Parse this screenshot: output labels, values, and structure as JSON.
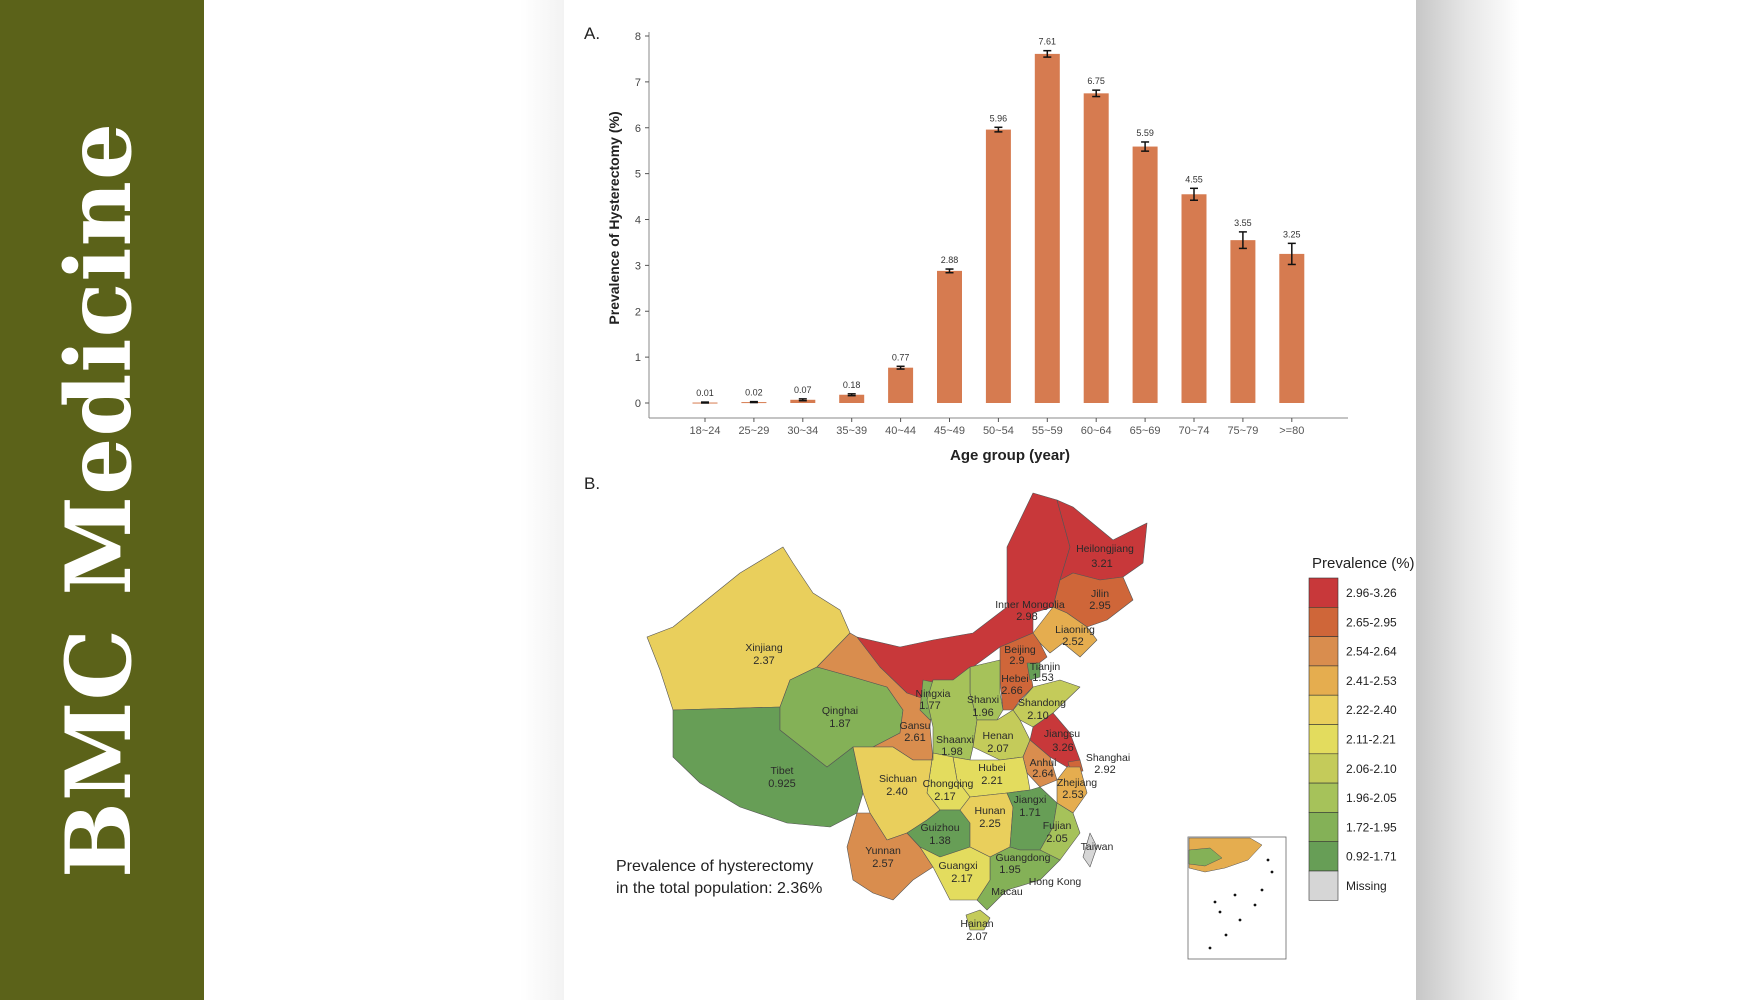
{
  "brand": {
    "title": "BMC Medicine",
    "color": "#5b6219"
  },
  "chart_data": [
    {
      "type": "bar",
      "panel_label": "A.",
      "xlabel": "Age group (year)",
      "ylabel": "Prevalence of Hysterectomy (%)",
      "ylim": [
        0,
        8
      ],
      "yticks": [
        0,
        1,
        2,
        3,
        4,
        5,
        6,
        7,
        8
      ],
      "grid": false,
      "bar_color": "#d67b50",
      "categories": [
        "18~24",
        "25~29",
        "30~34",
        "35~39",
        "40~44",
        "45~49",
        "50~54",
        "55~59",
        "60~64",
        "65~69",
        "70~74",
        "75~79",
        ">=80"
      ],
      "values": [
        0.01,
        0.02,
        0.07,
        0.18,
        0.77,
        2.88,
        5.96,
        7.61,
        6.75,
        5.59,
        4.55,
        3.55,
        3.25
      ],
      "value_labels": [
        "0.01",
        "0.02",
        "0.07",
        "0.18",
        "0.77",
        "2.88",
        "5.96",
        "7.61",
        "6.75",
        "5.59",
        "4.55",
        "3.55",
        "3.25"
      ],
      "error_lower": [
        0.0,
        0.01,
        0.05,
        0.16,
        0.74,
        2.84,
        5.91,
        7.54,
        6.68,
        5.49,
        4.42,
        3.37,
        3.02
      ],
      "error_upper": [
        0.02,
        0.03,
        0.09,
        0.2,
        0.8,
        2.92,
        6.01,
        7.68,
        6.82,
        5.69,
        4.68,
        3.73,
        3.48
      ]
    },
    {
      "type": "choropleth",
      "panel_label": "B.",
      "legend_title": "Prevalence (%)",
      "legend_placement": "right",
      "bins": [
        {
          "label": "2.96-3.26",
          "min": 2.96,
          "max": 3.26,
          "color": "#c8383a"
        },
        {
          "label": "2.65-2.95",
          "min": 2.65,
          "max": 2.95,
          "color": "#cf6639"
        },
        {
          "label": "2.54-2.64",
          "min": 2.54,
          "max": 2.64,
          "color": "#d98d4e"
        },
        {
          "label": "2.41-2.53",
          "min": 2.41,
          "max": 2.53,
          "color": "#e5ad4f"
        },
        {
          "label": "2.22-2.40",
          "min": 2.22,
          "max": 2.4,
          "color": "#e9cf5c"
        },
        {
          "label": "2.11-2.21",
          "min": 2.11,
          "max": 2.21,
          "color": "#e3dc5e"
        },
        {
          "label": "2.06-2.10",
          "min": 2.06,
          "max": 2.1,
          "color": "#c4cb5a"
        },
        {
          "label": "1.96-2.05",
          "min": 1.96,
          "max": 2.05,
          "color": "#a6c25a"
        },
        {
          "label": "1.72-1.95",
          "min": 1.72,
          "max": 1.95,
          "color": "#84b157"
        },
        {
          "label": "0.92-1.71",
          "min": 0.92,
          "max": 1.71,
          "color": "#679e56"
        },
        {
          "label": "Missing",
          "min": null,
          "max": null,
          "color": "#d6d6d6"
        }
      ],
      "regions": [
        {
          "name": "Xinjiang",
          "value": "2.37"
        },
        {
          "name": "Tibet",
          "value": "0.925"
        },
        {
          "name": "Qinghai",
          "value": "1.87"
        },
        {
          "name": "Gansu",
          "value": "2.61"
        },
        {
          "name": "Inner Mongolia",
          "value": "2.98"
        },
        {
          "name": "Heilongjiang",
          "value": "3.21"
        },
        {
          "name": "Jilin",
          "value": "2.95"
        },
        {
          "name": "Liaoning",
          "value": "2.52"
        },
        {
          "name": "Beijing",
          "value": "2.9"
        },
        {
          "name": "Hebei",
          "value": "2.66"
        },
        {
          "name": "Tianjin",
          "value": "1.53"
        },
        {
          "name": "Shanxi",
          "value": "1.96"
        },
        {
          "name": "Ningxia",
          "value": "1.77"
        },
        {
          "name": "Shaanxi",
          "value": "1.98"
        },
        {
          "name": "Shandong",
          "value": "2.10"
        },
        {
          "name": "Henan",
          "value": "2.07"
        },
        {
          "name": "Jiangsu",
          "value": "3.26"
        },
        {
          "name": "Anhui",
          "value": "2.64"
        },
        {
          "name": "Shanghai",
          "value": "2.92"
        },
        {
          "name": "Zhejiang",
          "value": "2.53"
        },
        {
          "name": "Hubei",
          "value": "2.21"
        },
        {
          "name": "Chongqing",
          "value": "2.17"
        },
        {
          "name": "Sichuan",
          "value": "2.40"
        },
        {
          "name": "Yunnan",
          "value": "2.57"
        },
        {
          "name": "Guizhou",
          "value": "1.38"
        },
        {
          "name": "Hunan",
          "value": "2.25"
        },
        {
          "name": "Jiangxi",
          "value": "1.71"
        },
        {
          "name": "Fujian",
          "value": "2.05"
        },
        {
          "name": "Guangdong",
          "value": "1.95"
        },
        {
          "name": "Guangxi",
          "value": "2.17"
        },
        {
          "name": "Hainan",
          "value": "2.07"
        },
        {
          "name": "Taiwan",
          "value": null
        },
        {
          "name": "Hong Kong",
          "value": null
        },
        {
          "name": "Macau",
          "value": null
        }
      ],
      "annotation": {
        "line1": "Prevalence of hysterectomy",
        "line2": "in the total population: 2.36%"
      }
    }
  ]
}
